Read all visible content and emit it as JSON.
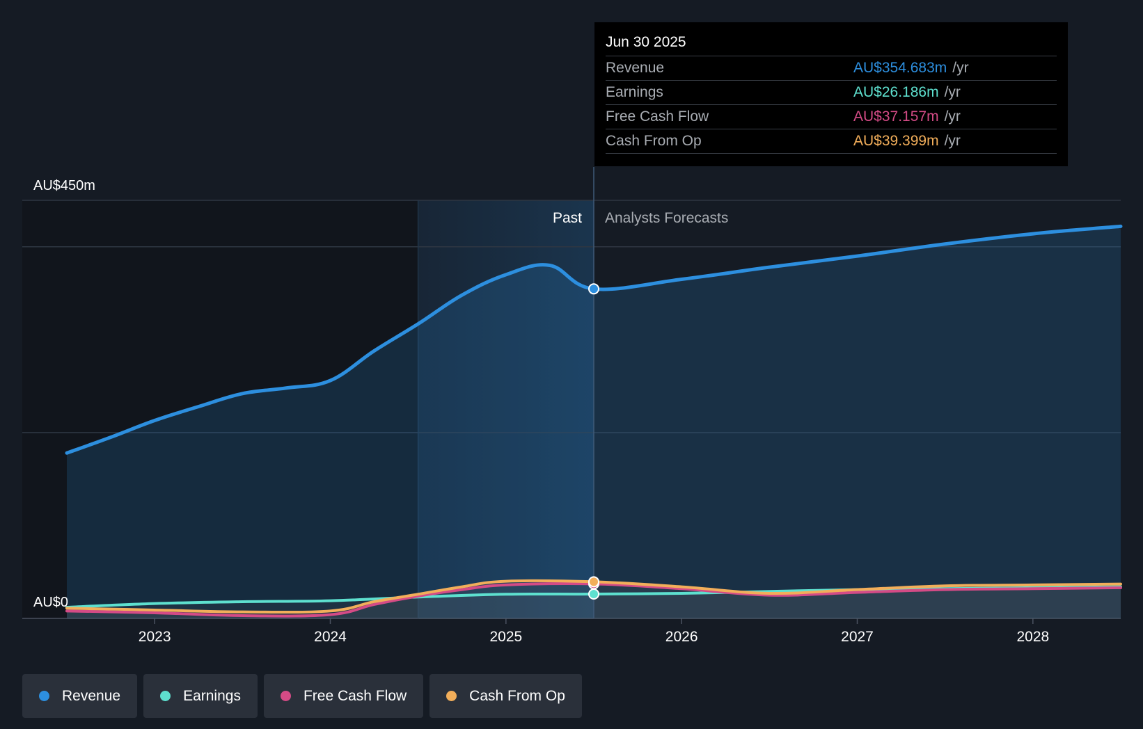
{
  "colors": {
    "revenue": "#2d8fdf",
    "earnings": "#5ee0cf",
    "free_cash_flow": "#d44b86",
    "cash_from_op": "#f2ae5a",
    "background": "#151b24"
  },
  "tooltip": {
    "date": "Jun 30 2025",
    "rows": [
      {
        "label": "Revenue",
        "value": "AU$354.683m",
        "unit": "/yr"
      },
      {
        "label": "Earnings",
        "value": "AU$26.186m",
        "unit": "/yr"
      },
      {
        "label": "Free Cash Flow",
        "value": "AU$37.157m",
        "unit": "/yr"
      },
      {
        "label": "Cash From Op",
        "value": "AU$39.399m",
        "unit": "/yr"
      }
    ]
  },
  "legend": [
    {
      "label": "Revenue",
      "color": "#2d8fdf"
    },
    {
      "label": "Earnings",
      "color": "#5ee0cf"
    },
    {
      "label": "Free Cash Flow",
      "color": "#d44b86"
    },
    {
      "label": "Cash From Op",
      "color": "#f2ae5a"
    }
  ],
  "chart_data": {
    "type": "area",
    "title": "",
    "xlabel": "",
    "ylabel": "",
    "y_axis_labels": {
      "top": "AU$450m",
      "bottom": "AU$0"
    },
    "ylim": [
      0,
      450
    ],
    "xlim": [
      2022.5,
      2028.5
    ],
    "x_ticks": [
      2023,
      2024,
      2025,
      2026,
      2027,
      2028
    ],
    "x_tick_labels": [
      "2023",
      "2024",
      "2025",
      "2026",
      "2027",
      "2028"
    ],
    "past_label": "Past",
    "forecast_label": "Analysts Forecasts",
    "divider_x": 2025.5,
    "highlight_start": 2024.5,
    "grid": true,
    "series": [
      {
        "name": "Revenue",
        "color": "#2d8fdf",
        "x": [
          2022.5,
          2022.75,
          2023.0,
          2023.25,
          2023.5,
          2023.75,
          2024.0,
          2024.25,
          2024.5,
          2024.75,
          2025.0,
          2025.25,
          2025.5,
          2026.0,
          2026.5,
          2027.0,
          2027.5,
          2028.0,
          2028.5
        ],
        "y": [
          178,
          195,
          213,
          228,
          242,
          248,
          256,
          288,
          317,
          348,
          370,
          380,
          354.683,
          365,
          378,
          390,
          403,
          414,
          422
        ]
      },
      {
        "name": "Earnings",
        "color": "#5ee0cf",
        "x": [
          2022.5,
          2023.0,
          2023.5,
          2024.0,
          2024.5,
          2025.0,
          2025.5,
          2026.0,
          2026.5,
          2027.0,
          2027.5,
          2028.0,
          2028.5
        ],
        "y": [
          12,
          16,
          18,
          19,
          23,
          26,
          26.186,
          27,
          29,
          31,
          32,
          33,
          34
        ]
      },
      {
        "name": "Free Cash Flow",
        "color": "#d44b86",
        "x": [
          2022.5,
          2023.0,
          2023.5,
          2024.0,
          2024.25,
          2024.5,
          2024.75,
          2025.0,
          2025.5,
          2026.0,
          2026.5,
          2027.0,
          2027.5,
          2028.0,
          2028.5
        ],
        "y": [
          8,
          6,
          3,
          4,
          15,
          24,
          31,
          36,
          37.157,
          32,
          25,
          28,
          31,
          32,
          33
        ]
      },
      {
        "name": "Cash From Op",
        "color": "#f2ae5a",
        "x": [
          2022.5,
          2023.0,
          2023.5,
          2024.0,
          2024.25,
          2024.5,
          2024.75,
          2025.0,
          2025.5,
          2026.0,
          2026.5,
          2027.0,
          2027.5,
          2028.0,
          2028.5
        ],
        "y": [
          11,
          9,
          7,
          8,
          18,
          26,
          34,
          40,
          39.399,
          34,
          27,
          31,
          35,
          36,
          37
        ]
      }
    ]
  }
}
